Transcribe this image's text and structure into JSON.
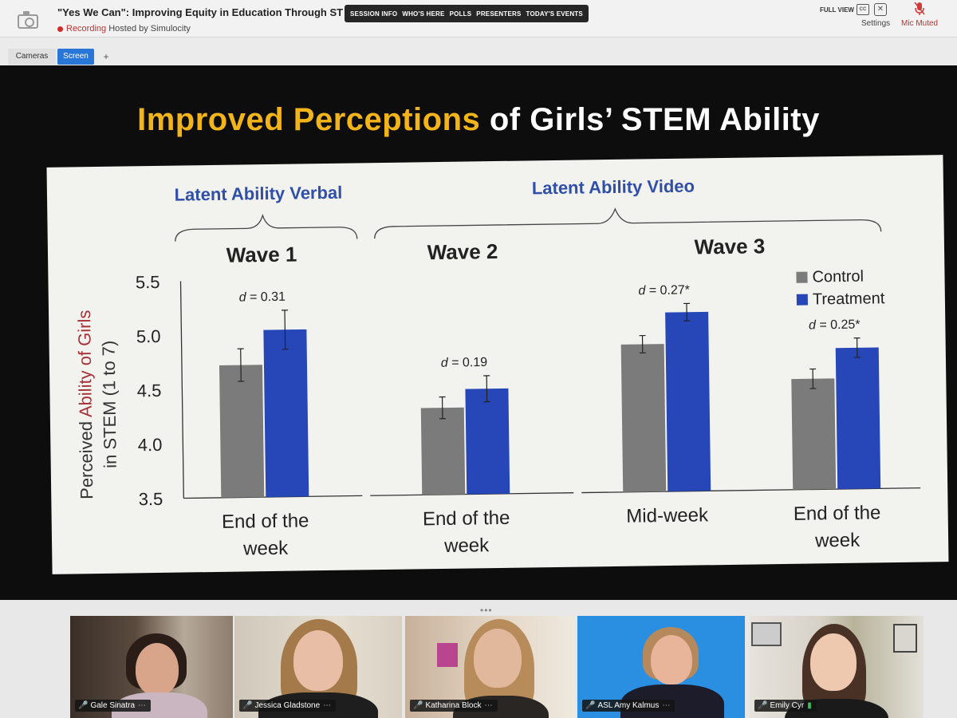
{
  "app": {
    "session_title": "\"Yes We Can\": Improving Equity in Education Through ST",
    "recording_label": "Recording",
    "hosted_by": "Hosted by Simulocity",
    "nav_items": [
      "SESSION INFO",
      "WHO'S HERE",
      "POLLS",
      "PRESENTERS",
      "TODAY'S EVENTS"
    ],
    "full_view_label": "FULL VIEW",
    "cc_label": "CC",
    "settings_label": "Settings",
    "mic_label": "Mic Muted"
  },
  "tabs": {
    "cameras": "Cameras",
    "screen": "Screen",
    "add": "+"
  },
  "slide": {
    "title_highlight": "Improved Perceptions",
    "title_rest": " of Girls’ STEM Ability"
  },
  "chart_data": {
    "type": "bar",
    "title": "Improved Perceptions of Girls’ STEM Ability",
    "ylabel_parts": [
      "Perceived ",
      "Ability of Girls",
      "in STEM (1 to 7)"
    ],
    "ylim": [
      3.5,
      5.5
    ],
    "yticks": [
      "5.5",
      "5.0",
      "4.5",
      "4.0",
      "3.5"
    ],
    "group_labels": [
      "Latent Ability Verbal",
      "Latent Ability Video"
    ],
    "waves": [
      "Wave 1",
      "Wave 2",
      "Wave 3"
    ],
    "legend": [
      "Control",
      "Treatment"
    ],
    "colors": {
      "control": "#7b7b7b",
      "treatment": "#2747b8",
      "accent_red": "#a8323a",
      "label_blue": "#2f4fa8"
    },
    "clusters": [
      {
        "xlabel": [
          "End of the",
          "week"
        ],
        "control": 4.72,
        "treatment": 5.04,
        "control_err": 0.15,
        "treatment_err": 0.18,
        "d_prefix": "d",
        "d_value": " = 0.31"
      },
      {
        "xlabel": [
          "End of the",
          "week"
        ],
        "control": 4.3,
        "treatment": 4.47,
        "control_err": 0.1,
        "treatment_err": 0.12,
        "d_prefix": "d",
        "d_value": " = 0.19"
      },
      {
        "xlabel": [
          "Mid-week"
        ],
        "control": 4.86,
        "treatment": 5.15,
        "control_err": 0.08,
        "treatment_err": 0.08,
        "d_prefix": "d",
        "d_value": " = 0.27*"
      },
      {
        "xlabel": [
          "End of the",
          "week"
        ],
        "control": 4.52,
        "treatment": 4.8,
        "control_err": 0.09,
        "treatment_err": 0.09,
        "d_prefix": "d",
        "d_value": " = 0.25*"
      }
    ]
  },
  "participants": [
    {
      "name": "Gale Sinatra",
      "mic": "muted"
    },
    {
      "name": "Jessica Gladstone",
      "mic": "muted"
    },
    {
      "name": "Katharina Block",
      "mic": "muted"
    },
    {
      "name": "ASL Amy Kalmus",
      "mic": "muted"
    },
    {
      "name": "Emily Cyr",
      "mic": "active"
    }
  ],
  "strip_handle": "•••"
}
